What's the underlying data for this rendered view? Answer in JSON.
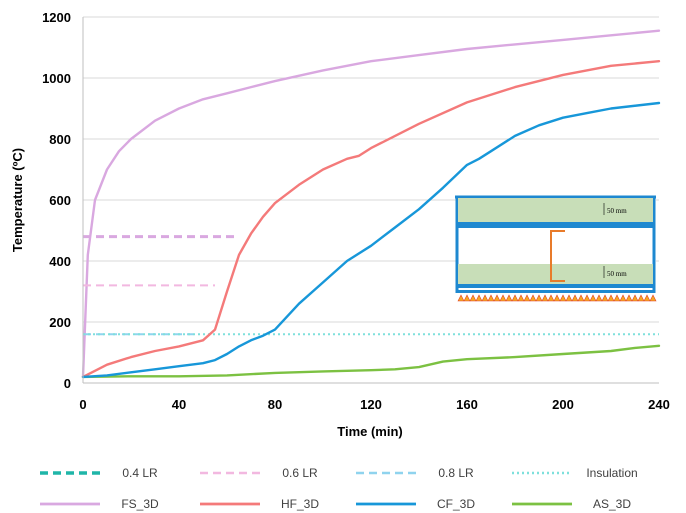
{
  "chart_data": {
    "type": "line",
    "xlabel": "Time (min)",
    "ylabel": "Temperature (ºC)",
    "xlim": [
      0,
      240
    ],
    "ylim": [
      0,
      1200
    ],
    "x_ticks": [
      "0",
      "40",
      "80",
      "120",
      "160",
      "200",
      "240"
    ],
    "y_ticks": [
      "0",
      "200",
      "400",
      "600",
      "800",
      "1000",
      "1200"
    ],
    "grid": "horizontal",
    "legend_position": "bottom",
    "series": [
      {
        "name": "0.4 LR",
        "color": "#1FB5A8",
        "style": "dashed-thick",
        "x": [
          0,
          63
        ],
        "y": [
          480,
          480
        ],
        "line_color": "#D9A8E0"
      },
      {
        "name": "0.6 LR",
        "color": "#F2B8E0",
        "style": "dashed",
        "x": [
          0,
          55
        ],
        "y": [
          320,
          320
        ]
      },
      {
        "name": "0.8 LR",
        "color": "#8FD3EE",
        "style": "dashed",
        "x": [
          0,
          46
        ],
        "y": [
          160,
          160
        ]
      },
      {
        "name": "Insulation",
        "color": "#7EE0DC",
        "style": "dotted",
        "x": [
          0,
          240
        ],
        "y": [
          160,
          160
        ]
      },
      {
        "name": "FS_3D",
        "color": "#D9A8E0",
        "style": "solid",
        "x": [
          0,
          2,
          5,
          10,
          15,
          20,
          30,
          40,
          50,
          60,
          70,
          80,
          100,
          120,
          140,
          160,
          180,
          200,
          220,
          240
        ],
        "y": [
          20,
          420,
          600,
          700,
          760,
          800,
          860,
          900,
          930,
          950,
          970,
          990,
          1025,
          1055,
          1075,
          1095,
          1110,
          1125,
          1140,
          1155
        ]
      },
      {
        "name": "HF_3D",
        "color": "#F47A7A",
        "style": "solid",
        "x": [
          0,
          10,
          20,
          30,
          40,
          50,
          55,
          60,
          65,
          70,
          75,
          80,
          90,
          100,
          110,
          115,
          120,
          140,
          160,
          180,
          200,
          220,
          240
        ],
        "y": [
          20,
          60,
          85,
          105,
          120,
          140,
          175,
          300,
          420,
          490,
          545,
          590,
          650,
          700,
          735,
          745,
          770,
          850,
          920,
          970,
          1010,
          1040,
          1055
        ]
      },
      {
        "name": "CF_3D",
        "color": "#1797D9",
        "style": "solid",
        "x": [
          0,
          10,
          20,
          30,
          40,
          50,
          55,
          60,
          65,
          70,
          75,
          80,
          90,
          100,
          110,
          120,
          130,
          140,
          150,
          160,
          165,
          170,
          180,
          190,
          200,
          210,
          220,
          240
        ],
        "y": [
          20,
          25,
          35,
          45,
          55,
          65,
          75,
          95,
          120,
          140,
          155,
          175,
          260,
          330,
          400,
          450,
          510,
          570,
          640,
          715,
          735,
          760,
          810,
          845,
          870,
          885,
          900,
          918
        ]
      },
      {
        "name": "AS_3D",
        "color": "#7CC142",
        "style": "solid",
        "x": [
          0,
          20,
          40,
          60,
          80,
          100,
          120,
          130,
          140,
          150,
          160,
          180,
          200,
          220,
          230,
          240
        ],
        "y": [
          20,
          22,
          22,
          25,
          33,
          38,
          42,
          45,
          52,
          70,
          78,
          85,
          95,
          105,
          115,
          122
        ]
      }
    ],
    "inset": {
      "label_top": "50 mm",
      "label_bottom": "50 mm"
    }
  }
}
